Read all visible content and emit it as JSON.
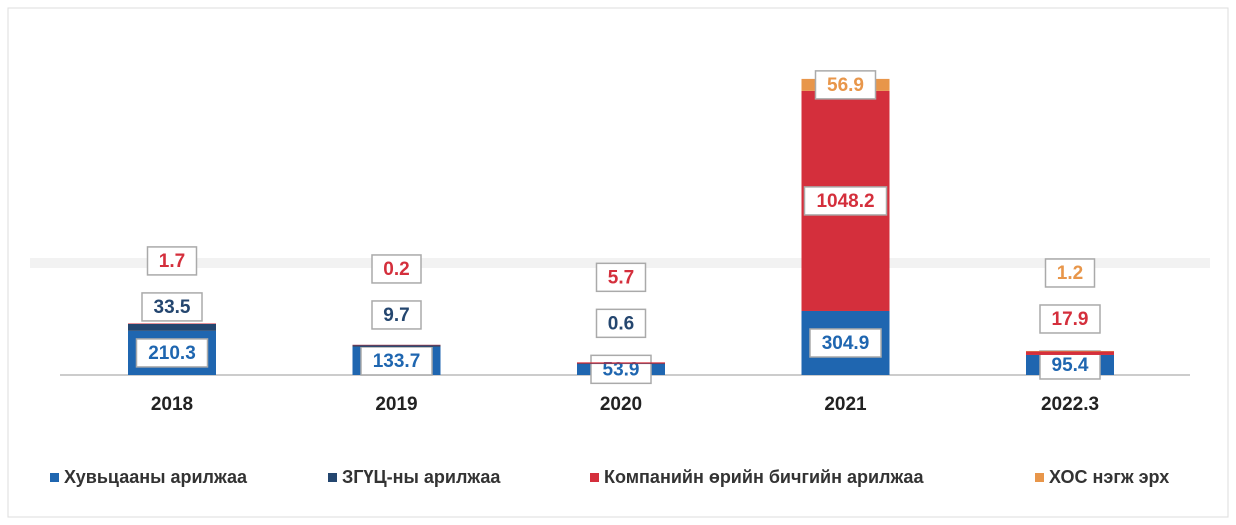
{
  "chart_data": {
    "type": "stacked-bar",
    "categories": [
      "2018",
      "2019",
      "2020",
      "2021",
      "2022.3"
    ],
    "series": [
      {
        "name": "Хувьцааны арилжаа",
        "color": "#1f66b0",
        "values": [
          210.3,
          133.7,
          53.9,
          304.9,
          95.4
        ]
      },
      {
        "name": "ЗГҮЦ-ны арилжаа",
        "color": "#24466f",
        "values": [
          33.5,
          9.7,
          0.6,
          null,
          null
        ]
      },
      {
        "name": "Компанийн өрийн бичгийн арилжаа",
        "color": "#d42f3c",
        "values": [
          1.7,
          0.2,
          5.7,
          1048.2,
          17.9
        ]
      },
      {
        "name": "ХОС нэгж эрх",
        "color": "#e8964a",
        "values": [
          null,
          null,
          null,
          56.9,
          1.2
        ]
      }
    ]
  }
}
